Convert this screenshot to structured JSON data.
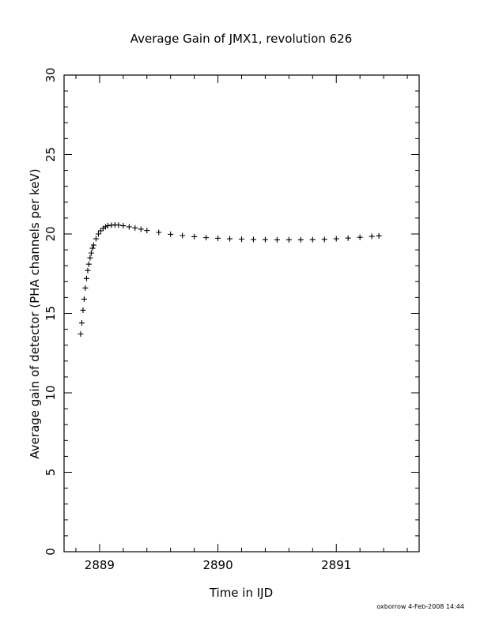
{
  "chart_data": {
    "type": "scatter",
    "title": "Average Gain of JMX1, revolution 626",
    "xlabel": "Time in IJD",
    "ylabel": "Average gain of detector (PHA channels per keV)",
    "xlim": [
      2888.7,
      2891.7
    ],
    "ylim": [
      0,
      30
    ],
    "x_ticks": [
      "2889",
      "2890",
      "2891"
    ],
    "y_ticks": [
      "0",
      "5",
      "10",
      "15",
      "20",
      "25",
      "30"
    ],
    "x_tick_values": [
      2889,
      2890,
      2891
    ],
    "y_tick_values": [
      0,
      5,
      10,
      15,
      20,
      25,
      30
    ],
    "x_minor_step": 0.2,
    "y_minor_step": 1,
    "marker": "plus",
    "color": "#000000",
    "series": [
      {
        "x": [
          2888.84,
          2888.85,
          2888.86,
          2888.87,
          2888.88,
          2888.89,
          2888.9,
          2888.91,
          2888.92,
          2888.93,
          2888.94,
          2888.95,
          2888.97,
          2888.99,
          2889.01,
          2889.03,
          2889.05,
          2889.07,
          2889.1,
          2889.13,
          2889.16,
          2889.2,
          2889.25,
          2889.3,
          2889.35,
          2889.4,
          2889.5,
          2889.6,
          2889.7,
          2889.8,
          2889.9,
          2890.0,
          2890.1,
          2890.2,
          2890.3,
          2890.4,
          2890.5,
          2890.6,
          2890.7,
          2890.8,
          2890.9,
          2891.0,
          2891.1,
          2891.2,
          2891.3,
          2891.36
        ],
        "y": [
          13.7,
          14.4,
          15.2,
          15.9,
          16.6,
          17.2,
          17.7,
          18.1,
          18.5,
          18.8,
          19.1,
          19.3,
          19.7,
          20.0,
          20.2,
          20.35,
          20.45,
          20.52,
          20.55,
          20.57,
          20.56,
          20.52,
          20.45,
          20.38,
          20.3,
          20.22,
          20.1,
          19.98,
          19.9,
          19.83,
          19.77,
          19.73,
          19.7,
          19.67,
          19.65,
          19.64,
          19.63,
          19.63,
          19.63,
          19.64,
          19.66,
          19.7,
          19.74,
          19.79,
          19.85,
          19.88
        ]
      }
    ]
  },
  "footer": {
    "credit": "oxborrow  4-Feb-2008 14:44"
  }
}
